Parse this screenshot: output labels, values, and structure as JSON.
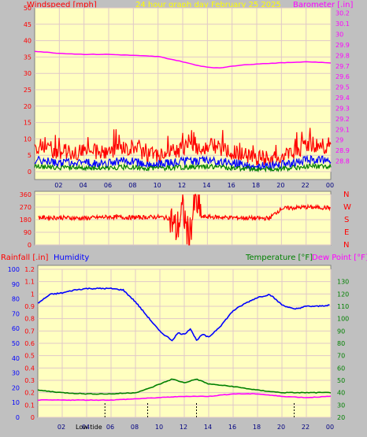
{
  "header": {
    "windspeed_label": "Windspeed [mph]",
    "graph_title": "24 hour graph day",
    "date": "February 25 2025",
    "barometer_label": "Barometer [.in]"
  },
  "direction_letters": [
    "N",
    "W",
    "S",
    "E",
    "N"
  ],
  "bottom_header": {
    "rainfall_label": "Rainfall [.in]",
    "humidity_label": "Humidity",
    "temperature_label": "Temperature [°F]",
    "dewpoint_label": "Dew Point [°F]"
  },
  "low_tide_label": "Low tide",
  "colors": {
    "windspeed": "#ff0000",
    "wind_avg": "#0000ff",
    "wind_low": "#008000",
    "barometer": "#ff00ff",
    "direction": "#ff0000",
    "humidity": "#0000ff",
    "temperature": "#008000",
    "dewpoint": "#ff00ff",
    "panel_bg": "#ffffc0",
    "grid": "#e0c8c8"
  },
  "chart_data": [
    {
      "type": "line",
      "x_ticks": [
        "02",
        "04",
        "06",
        "08",
        "10",
        "12",
        "14",
        "16",
        "18",
        "20",
        "22",
        "00"
      ],
      "y_left_ticks": [
        "0",
        "5",
        "10",
        "15",
        "20",
        "25",
        "30",
        "35",
        "40",
        "45",
        "50"
      ],
      "ylim_left": [
        0,
        50
      ],
      "y_right_ticks": [
        "28.8",
        "28.9",
        "29",
        "29.1",
        "29.2",
        "29.3",
        "29.4",
        "29.5",
        "29.6",
        "29.7",
        "29.8",
        "29.9",
        "30",
        "30.1",
        "30.2"
      ],
      "ylim_right": [
        28.7,
        30.25
      ],
      "series": [
        {
          "name": "Windspeed [mph]",
          "axis": "left",
          "hours": [
            0,
            1,
            2,
            3,
            4,
            5,
            6,
            7,
            8,
            9,
            10,
            11,
            12,
            13,
            14,
            15,
            16,
            17,
            18,
            19,
            20,
            21,
            22,
            23,
            24
          ],
          "values": [
            8,
            7,
            6,
            6,
            6,
            6,
            6,
            7,
            7,
            5,
            5,
            6,
            7,
            7,
            8,
            7,
            6,
            5,
            4,
            4,
            5,
            6,
            8,
            8,
            8
          ]
        },
        {
          "name": "Barometer [.in]",
          "axis": "right",
          "hours": [
            0,
            2,
            4,
            6,
            8,
            10,
            12,
            13,
            14,
            15,
            16,
            18,
            20,
            22,
            24
          ],
          "values": [
            29.84,
            29.82,
            29.81,
            29.81,
            29.8,
            29.79,
            29.74,
            29.71,
            29.69,
            29.68,
            29.7,
            29.72,
            29.73,
            29.74,
            29.73
          ]
        }
      ]
    },
    {
      "type": "line",
      "y_ticks": [
        "0",
        "90",
        "180",
        "270",
        "360"
      ],
      "ylim": [
        0,
        360
      ],
      "hours": [
        0,
        2,
        4,
        6,
        8,
        10,
        11,
        11.5,
        12,
        12.5,
        13,
        13.5,
        14,
        16,
        18,
        19,
        20,
        22,
        24
      ],
      "values": [
        195,
        195,
        190,
        200,
        195,
        200,
        190,
        100,
        260,
        40,
        320,
        200,
        200,
        195,
        190,
        190,
        260,
        270,
        265
      ]
    },
    {
      "type": "line",
      "y_ticks_humidity": [
        "0",
        "10",
        "20",
        "30",
        "40",
        "50",
        "60",
        "70",
        "80",
        "90",
        "100"
      ],
      "ylim_humidity": [
        0,
        100
      ],
      "y_ticks_rain": [
        "0",
        "0.1",
        "0.2",
        "0.3",
        "0.4",
        "0.5",
        "0.6",
        "0.7",
        "0.8",
        "0.9",
        "1",
        "1.1",
        "1.2"
      ],
      "ylim_rain": [
        0,
        1.2
      ],
      "y_ticks_temp": [
        "20",
        "30",
        "40",
        "50",
        "60",
        "70",
        "80",
        "90",
        "100",
        "110",
        "120",
        "130"
      ],
      "ylim_temp": [
        20,
        140
      ],
      "series": [
        {
          "name": "Humidity",
          "axis": "humidity",
          "hours": [
            0,
            1,
            2,
            3,
            4,
            5,
            6,
            7,
            8,
            9,
            10,
            10.5,
            11,
            11.5,
            12,
            12.5,
            13,
            13.5,
            14,
            15,
            16,
            17,
            18,
            19,
            20,
            21,
            22,
            23,
            24
          ],
          "values": [
            77,
            83,
            84,
            86,
            87,
            87,
            87,
            86,
            78,
            68,
            58,
            55,
            52,
            57,
            56,
            60,
            52,
            56,
            54,
            62,
            72,
            77,
            81,
            83,
            76,
            73,
            75,
            75,
            76
          ]
        },
        {
          "name": "Temperature [°F]",
          "axis": "temp",
          "hours": [
            0,
            2,
            4,
            6,
            8,
            9,
            10,
            11,
            12,
            13,
            14,
            15,
            16,
            18,
            20,
            22,
            24
          ],
          "values": [
            42,
            40,
            39,
            39,
            40,
            43,
            47,
            51,
            48,
            51,
            47,
            46,
            45,
            42,
            40,
            40,
            40
          ]
        },
        {
          "name": "Dew Point [°F]",
          "axis": "temp",
          "hours": [
            0,
            2,
            4,
            6,
            8,
            10,
            12,
            14,
            16,
            18,
            20,
            22,
            24
          ],
          "values": [
            34,
            34,
            34,
            34,
            35,
            36,
            37,
            37,
            39,
            39,
            37,
            36,
            37
          ]
        }
      ]
    }
  ]
}
